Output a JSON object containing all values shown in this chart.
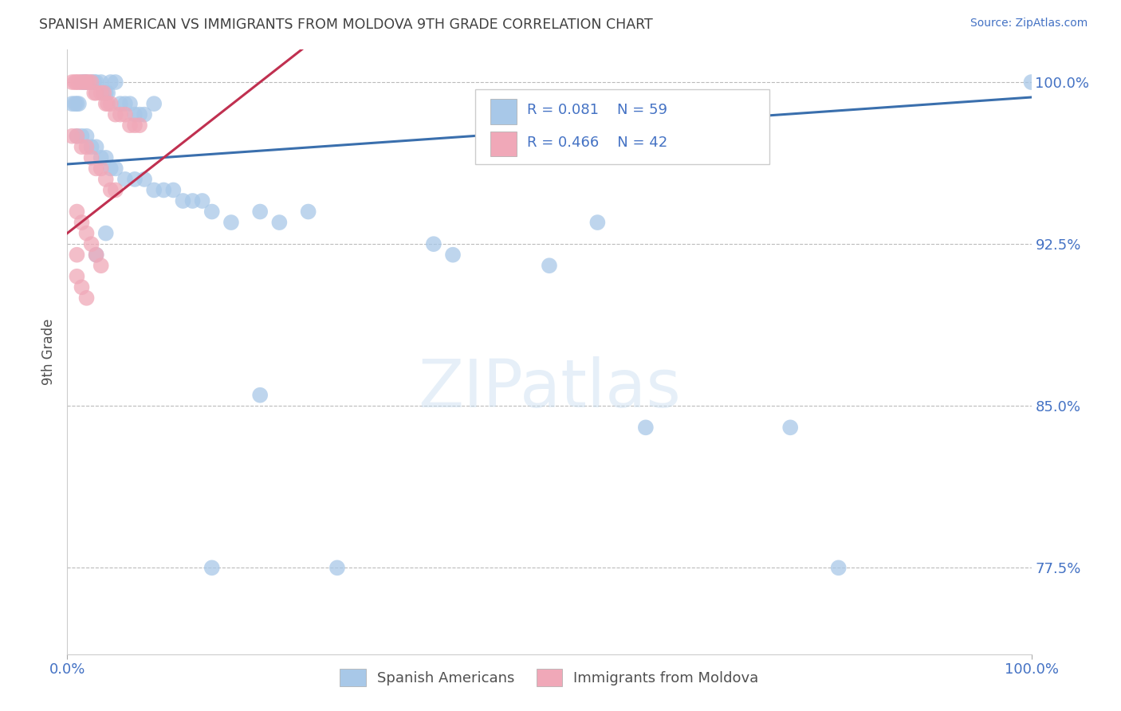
{
  "title": "SPANISH AMERICAN VS IMMIGRANTS FROM MOLDOVA 9TH GRADE CORRELATION CHART",
  "source": "Source: ZipAtlas.com",
  "ylabel": "9th Grade",
  "xlim": [
    0.0,
    1.0
  ],
  "ylim": [
    0.735,
    1.015
  ],
  "yticks": [
    0.775,
    0.85,
    0.925,
    1.0
  ],
  "ytick_labels": [
    "77.5%",
    "85.0%",
    "92.5%",
    "100.0%"
  ],
  "xtick_labels": [
    "0.0%",
    "100.0%"
  ],
  "xticks": [
    0.0,
    1.0
  ],
  "r_blue": 0.081,
  "n_blue": 59,
  "r_pink": 0.466,
  "n_pink": 42,
  "blue_color": "#a8c8e8",
  "pink_color": "#f0a8b8",
  "trendline_blue_color": "#3a6fad",
  "trendline_pink_color": "#c03050",
  "legend_label_blue": "Spanish Americans",
  "legend_label_pink": "Immigrants from Moldova",
  "watermark": "ZIPatlas",
  "blue_scatter_x": [
    0.005,
    0.008,
    0.01,
    0.012,
    0.015,
    0.018,
    0.02,
    0.025,
    0.028,
    0.03,
    0.035,
    0.038,
    0.04,
    0.042,
    0.045,
    0.05,
    0.055,
    0.06,
    0.065,
    0.07,
    0.075,
    0.08,
    0.09,
    0.01,
    0.015,
    0.02,
    0.025,
    0.03,
    0.035,
    0.04,
    0.045,
    0.05,
    0.06,
    0.07,
    0.08,
    0.09,
    0.1,
    0.11,
    0.12,
    0.13,
    0.14,
    0.15,
    0.17,
    0.2,
    0.22,
    0.25,
    0.03,
    0.04,
    0.2,
    0.38,
    0.4,
    0.5,
    0.55,
    0.6,
    0.75,
    0.8,
    0.15,
    0.28,
    1.0
  ],
  "blue_scatter_y": [
    0.99,
    0.99,
    0.99,
    0.99,
    1.0,
    1.0,
    1.0,
    1.0,
    1.0,
    1.0,
    1.0,
    0.995,
    0.995,
    0.995,
    1.0,
    1.0,
    0.99,
    0.99,
    0.99,
    0.985,
    0.985,
    0.985,
    0.99,
    0.975,
    0.975,
    0.975,
    0.97,
    0.97,
    0.965,
    0.965,
    0.96,
    0.96,
    0.955,
    0.955,
    0.955,
    0.95,
    0.95,
    0.95,
    0.945,
    0.945,
    0.945,
    0.94,
    0.935,
    0.94,
    0.935,
    0.94,
    0.92,
    0.93,
    0.855,
    0.925,
    0.92,
    0.915,
    0.935,
    0.84,
    0.84,
    0.775,
    0.775,
    0.775,
    1.0
  ],
  "pink_scatter_x": [
    0.005,
    0.008,
    0.01,
    0.012,
    0.015,
    0.018,
    0.02,
    0.022,
    0.025,
    0.028,
    0.03,
    0.035,
    0.038,
    0.04,
    0.042,
    0.045,
    0.05,
    0.055,
    0.06,
    0.065,
    0.07,
    0.075,
    0.005,
    0.01,
    0.015,
    0.02,
    0.025,
    0.03,
    0.035,
    0.04,
    0.045,
    0.05,
    0.01,
    0.015,
    0.02,
    0.025,
    0.03,
    0.035,
    0.01,
    0.015,
    0.02,
    0.01
  ],
  "pink_scatter_y": [
    1.0,
    1.0,
    1.0,
    1.0,
    1.0,
    1.0,
    1.0,
    1.0,
    1.0,
    0.995,
    0.995,
    0.995,
    0.995,
    0.99,
    0.99,
    0.99,
    0.985,
    0.985,
    0.985,
    0.98,
    0.98,
    0.98,
    0.975,
    0.975,
    0.97,
    0.97,
    0.965,
    0.96,
    0.96,
    0.955,
    0.95,
    0.95,
    0.94,
    0.935,
    0.93,
    0.925,
    0.92,
    0.915,
    0.91,
    0.905,
    0.9,
    0.92
  ],
  "background_color": "#ffffff",
  "grid_color": "#bbbbbb",
  "title_color": "#404040",
  "axis_label_color": "#505050",
  "tick_label_color": "#4472c4",
  "source_color": "#4472c4"
}
